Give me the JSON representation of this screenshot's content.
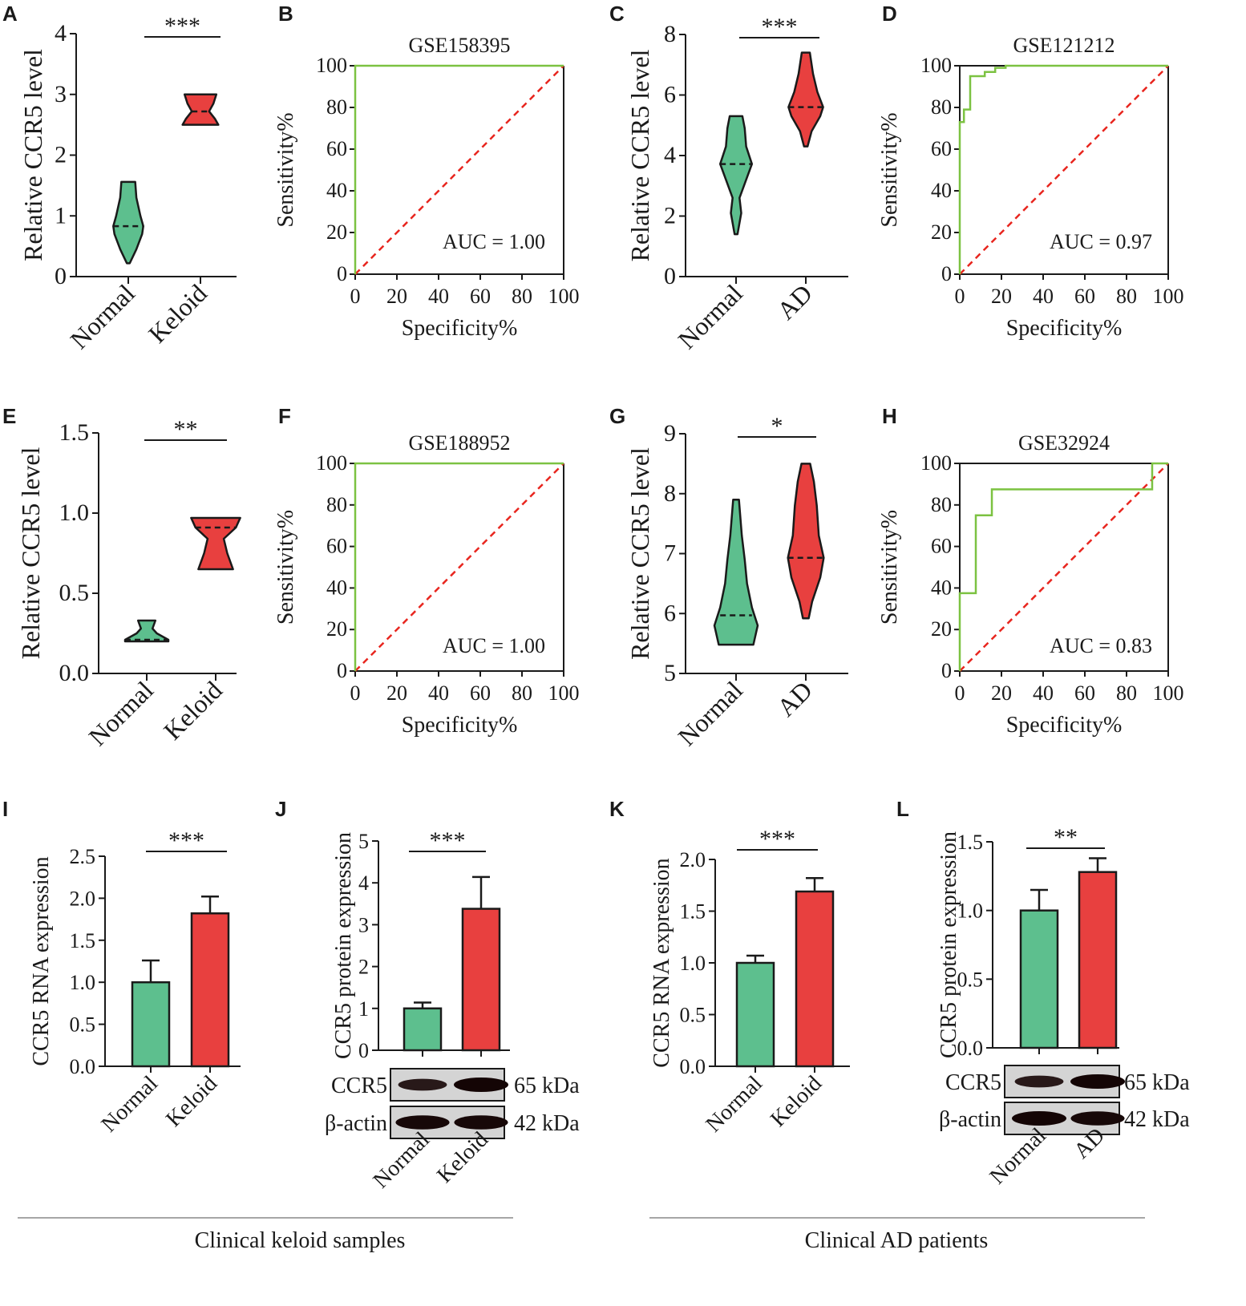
{
  "colors": {
    "normal": "#5dbf8e",
    "disease": "#e8403f",
    "roc": "#7cc242",
    "diag": "#e8261f",
    "axis": "#1a1a1a"
  },
  "panels": [
    {
      "id": "A",
      "type": "violin",
      "ylabel": "Relative CCR5 level",
      "ticks": [
        "0",
        "1",
        "2",
        "3",
        "4"
      ],
      "ylim": [
        0,
        4
      ],
      "categories": [
        "Normal",
        "Keloid"
      ],
      "sig": "***",
      "violins": [
        {
          "min": 0.22,
          "max": 1.56,
          "median": 0.83,
          "profile": [
            [
              0.22,
              0.05
            ],
            [
              0.45,
              0.28
            ],
            [
              0.7,
              0.48
            ],
            [
              0.83,
              0.52
            ],
            [
              1.0,
              0.42
            ],
            [
              1.3,
              0.28
            ],
            [
              1.56,
              0.24
            ]
          ]
        },
        {
          "min": 2.5,
          "max": 3.0,
          "median": 2.72,
          "profile": [
            [
              2.5,
              0.62
            ],
            [
              2.6,
              0.5
            ],
            [
              2.72,
              0.3
            ],
            [
              2.85,
              0.45
            ],
            [
              3.0,
              0.55
            ]
          ]
        }
      ]
    },
    {
      "id": "B",
      "type": "roc",
      "title": "GSE158395",
      "auc": "AUC = 1.00",
      "xlabel": "Specificity%",
      "ylabel": "Sensitivity%",
      "ticks": [
        "0",
        "20",
        "40",
        "60",
        "80",
        "100"
      ],
      "curve": [
        [
          0,
          0
        ],
        [
          0,
          100
        ],
        [
          100,
          100
        ]
      ]
    },
    {
      "id": "C",
      "type": "violin",
      "ylabel": "Relative CCR5 level",
      "ticks": [
        "0",
        "2",
        "4",
        "6",
        "8"
      ],
      "ylim": [
        0,
        8
      ],
      "categories": [
        "Normal",
        "AD"
      ],
      "sig": "***",
      "violins": [
        {
          "min": 1.4,
          "max": 5.3,
          "median": 3.72,
          "profile": [
            [
              1.4,
              0.05
            ],
            [
              2.1,
              0.18
            ],
            [
              2.6,
              0.12
            ],
            [
              3.2,
              0.35
            ],
            [
              3.72,
              0.55
            ],
            [
              4.3,
              0.35
            ],
            [
              4.9,
              0.3
            ],
            [
              5.3,
              0.22
            ]
          ]
        },
        {
          "min": 4.3,
          "max": 7.4,
          "median": 5.6,
          "profile": [
            [
              4.3,
              0.06
            ],
            [
              4.8,
              0.2
            ],
            [
              5.3,
              0.5
            ],
            [
              5.6,
              0.6
            ],
            [
              6.1,
              0.4
            ],
            [
              6.7,
              0.25
            ],
            [
              7.4,
              0.14
            ]
          ]
        }
      ]
    },
    {
      "id": "D",
      "type": "roc",
      "title": "GSE121212",
      "auc": "AUC = 0.97",
      "xlabel": "Specificity%",
      "ylabel": "Sensitivity%",
      "ticks": [
        "0",
        "20",
        "40",
        "60",
        "80",
        "100"
      ],
      "curve": [
        [
          0,
          0
        ],
        [
          0,
          73
        ],
        [
          2,
          73
        ],
        [
          2,
          79
        ],
        [
          5,
          79
        ],
        [
          5,
          95
        ],
        [
          12,
          95
        ],
        [
          12,
          97
        ],
        [
          17,
          97
        ],
        [
          17,
          99
        ],
        [
          22,
          99
        ],
        [
          22,
          100
        ],
        [
          100,
          100
        ]
      ]
    },
    {
      "id": "E",
      "type": "violin",
      "ylabel": "Relative CCR5 level",
      "ticks": [
        "0.0",
        "0.5",
        "1.0",
        "1.5"
      ],
      "ylim": [
        0,
        1.5
      ],
      "categories": [
        "Normal",
        "Keloid"
      ],
      "sig": "**",
      "violins": [
        {
          "min": 0.2,
          "max": 0.33,
          "median": 0.21,
          "profile": [
            [
              0.2,
              0.75
            ],
            [
              0.21,
              0.75
            ],
            [
              0.25,
              0.35
            ],
            [
              0.28,
              0.2
            ],
            [
              0.33,
              0.3
            ]
          ]
        },
        {
          "min": 0.65,
          "max": 0.97,
          "median": 0.91,
          "profile": [
            [
              0.65,
              0.6
            ],
            [
              0.75,
              0.4
            ],
            [
              0.84,
              0.28
            ],
            [
              0.91,
              0.7
            ],
            [
              0.97,
              0.85
            ]
          ]
        }
      ]
    },
    {
      "id": "F",
      "type": "roc",
      "title": "GSE188952",
      "auc": "AUC = 1.00",
      "xlabel": "Specificity%",
      "ylabel": "Sensitivity%",
      "ticks": [
        "0",
        "20",
        "40",
        "60",
        "80",
        "100"
      ],
      "curve": [
        [
          0,
          0
        ],
        [
          0,
          100
        ],
        [
          100,
          100
        ]
      ]
    },
    {
      "id": "G",
      "type": "violin",
      "ylabel": "Relative CCR5 level",
      "ticks": [
        "5",
        "6",
        "7",
        "8",
        "9"
      ],
      "ylim": [
        5,
        9
      ],
      "categories": [
        "Normal",
        "AD"
      ],
      "sig": "*",
      "violins": [
        {
          "min": 5.48,
          "max": 7.9,
          "median": 5.97,
          "profile": [
            [
              5.48,
              0.6
            ],
            [
              5.8,
              0.75
            ],
            [
              6.1,
              0.55
            ],
            [
              6.5,
              0.38
            ],
            [
              6.9,
              0.3
            ],
            [
              7.3,
              0.2
            ],
            [
              7.9,
              0.1
            ]
          ]
        },
        {
          "min": 5.92,
          "max": 8.5,
          "median": 6.93,
          "profile": [
            [
              5.92,
              0.1
            ],
            [
              6.2,
              0.22
            ],
            [
              6.6,
              0.5
            ],
            [
              6.93,
              0.62
            ],
            [
              7.3,
              0.45
            ],
            [
              7.8,
              0.38
            ],
            [
              8.2,
              0.28
            ],
            [
              8.5,
              0.15
            ]
          ]
        }
      ]
    },
    {
      "id": "H",
      "type": "roc",
      "title": "GSE32924",
      "auc": "AUC = 0.83",
      "xlabel": "Specificity%",
      "ylabel": "Sensitivity%",
      "ticks": [
        "0",
        "20",
        "40",
        "60",
        "80",
        "100"
      ],
      "curve": [
        [
          0,
          0
        ],
        [
          0,
          37.5
        ],
        [
          7.7,
          37.5
        ],
        [
          7.7,
          75
        ],
        [
          15.4,
          75
        ],
        [
          15.4,
          87.5
        ],
        [
          92.3,
          87.5
        ],
        [
          92.3,
          100
        ],
        [
          100,
          100
        ]
      ]
    },
    {
      "id": "I",
      "type": "bar",
      "ylabel": "CCR5 RNA expression",
      "ticks": [
        "0.0",
        "0.5",
        "1.0",
        "1.5",
        "2.0",
        "2.5"
      ],
      "ylim": [
        0,
        2.5
      ],
      "categories": [
        "Normal",
        "Keloid"
      ],
      "values": [
        1.0,
        1.82
      ],
      "errors": [
        0.26,
        0.2
      ],
      "sig": "***"
    },
    {
      "id": "J",
      "type": "bar",
      "ylabel": "CCR5 protein expression",
      "ticks": [
        "0",
        "1",
        "2",
        "3",
        "4",
        "5"
      ],
      "ylim": [
        0,
        5
      ],
      "categories": [
        "Normal",
        "Keloid"
      ],
      "values": [
        1.0,
        3.38
      ],
      "errors": [
        0.14,
        0.76
      ],
      "sig": "***",
      "blot": {
        "bands": [
          {
            "name": "CCR5",
            "kda": "65 kDa",
            "intensity": [
              0.6,
              1.0
            ]
          },
          {
            "name": "β-actin",
            "kda": "42 kDa",
            "intensity": [
              0.95,
              0.95
            ]
          }
        ]
      }
    },
    {
      "id": "K",
      "type": "bar",
      "ylabel": "CCR5 RNA expression",
      "ticks": [
        "0.0",
        "0.5",
        "1.0",
        "1.5",
        "2.0"
      ],
      "ylim": [
        0,
        2
      ],
      "categories": [
        "Normal",
        "Keloid"
      ],
      "values": [
        1.0,
        1.69
      ],
      "errors": [
        0.07,
        0.13
      ],
      "sig": "***"
    },
    {
      "id": "L",
      "type": "bar",
      "ylabel": "CCR5 protein expression",
      "ticks": [
        "0.0",
        "0.5",
        "1.0",
        "1.5"
      ],
      "ylim": [
        0,
        1.5
      ],
      "categories": [
        "Normal",
        "AD"
      ],
      "values": [
        1.0,
        1.28
      ],
      "errors": [
        0.15,
        0.1
      ],
      "sig": "**",
      "blot": {
        "bands": [
          {
            "name": "CCR5",
            "kda": "65 kDa",
            "intensity": [
              0.6,
              1.0
            ]
          },
          {
            "name": "β-actin",
            "kda": "42 kDa",
            "intensity": [
              1.0,
              0.95
            ]
          }
        ]
      }
    }
  ],
  "footer": {
    "left": "Clinical keloid samples",
    "right": "Clinical AD patients"
  }
}
